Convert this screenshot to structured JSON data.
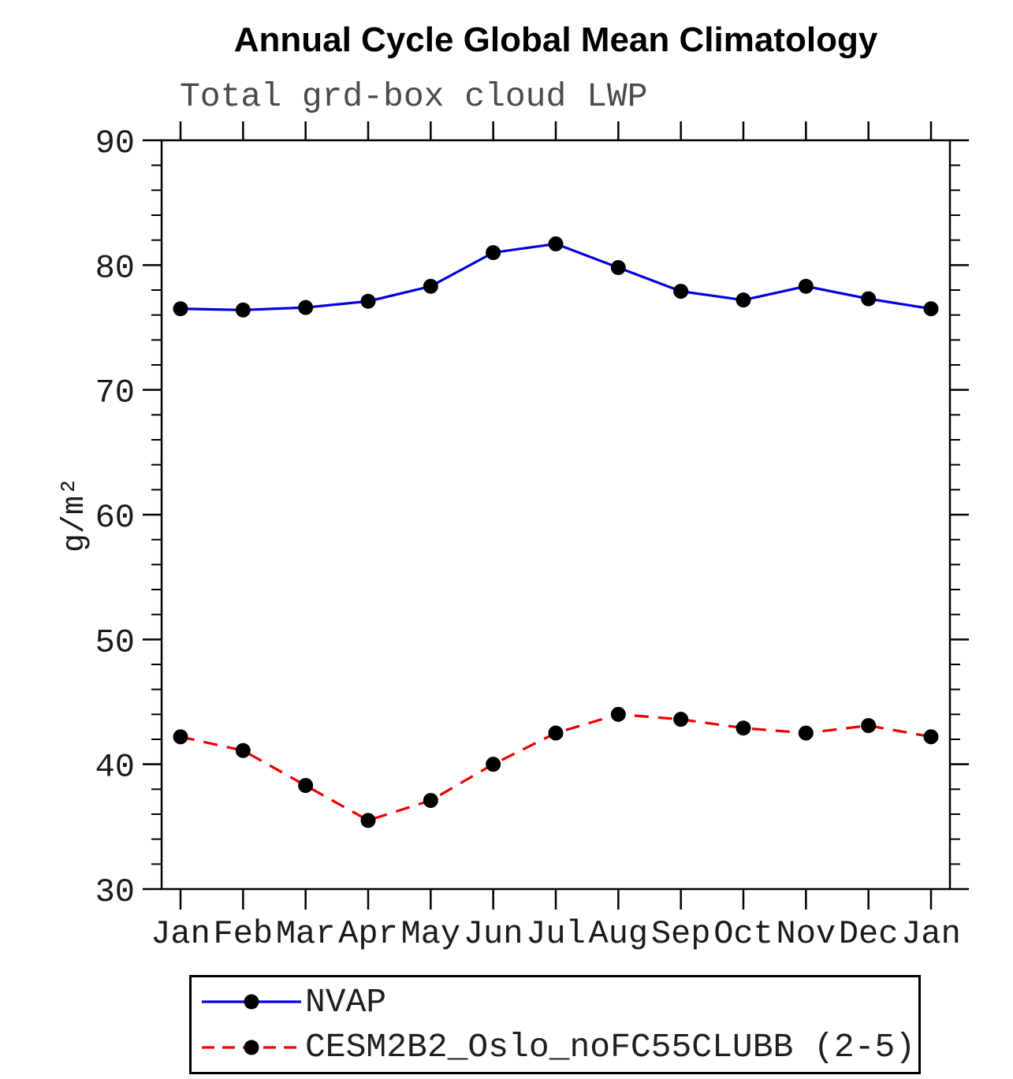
{
  "chart_data": {
    "type": "line",
    "title": "Annual Cycle Global Mean Climatology",
    "subtitle": "Total grd-box cloud LWP",
    "ylabel": "g/m²",
    "xlabel": "",
    "categories": [
      "Jan",
      "Feb",
      "Mar",
      "Apr",
      "May",
      "Jun",
      "Jul",
      "Aug",
      "Sep",
      "Oct",
      "Nov",
      "Dec",
      "Jan"
    ],
    "ylim": [
      30,
      90
    ],
    "ytick_major": 10,
    "ytick_minor": 2,
    "grid": false,
    "legend_position": "bottom",
    "series": [
      {
        "name": "NVAP",
        "color": "#0000dd",
        "style": "solid",
        "marker": "circle",
        "marker_color": "#000000",
        "values": [
          76.5,
          76.4,
          76.6,
          77.1,
          78.3,
          81.0,
          81.7,
          79.8,
          77.9,
          77.2,
          78.3,
          77.3,
          76.5
        ]
      },
      {
        "name": "CESM2B2_Oslo_noFC55CLUBB (2-5)",
        "color": "#ee0000",
        "style": "dashed",
        "marker": "circle",
        "marker_color": "#000000",
        "values": [
          42.2,
          41.1,
          38.3,
          35.5,
          37.1,
          40.0,
          42.5,
          44.0,
          43.6,
          42.9,
          42.5,
          43.1,
          42.2
        ]
      }
    ]
  }
}
